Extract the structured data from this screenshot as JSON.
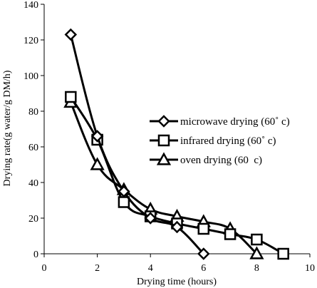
{
  "chart_data": {
    "type": "line",
    "title": "",
    "xlabel": "Drying time (hours)",
    "ylabel": "Drying rate(g water/g DM/h)",
    "xlim": [
      0,
      10
    ],
    "ylim": [
      0,
      140
    ],
    "xticks": [
      0,
      2,
      4,
      6,
      8,
      10
    ],
    "yticks": [
      0,
      20,
      40,
      60,
      80,
      100,
      120,
      140
    ],
    "grid": false,
    "legend_position": "right",
    "series": [
      {
        "name": "microwave drying (60˚ c)",
        "marker": "diamond",
        "x": [
          1,
          2,
          3,
          4,
          5,
          6
        ],
        "y": [
          123,
          66,
          35,
          20,
          15,
          0
        ]
      },
      {
        "name": "infrared drying (60˚ c)",
        "marker": "square",
        "x": [
          1,
          2,
          3,
          4,
          5,
          6,
          7,
          8,
          9
        ],
        "y": [
          88,
          64,
          29,
          21,
          17,
          14,
          11,
          8,
          0
        ]
      },
      {
        "name": "oven drying (60  c)",
        "marker": "triangle",
        "x": [
          1,
          2,
          3,
          4,
          5,
          6,
          7,
          8
        ],
        "y": [
          85,
          50,
          36,
          25,
          21,
          18,
          14,
          0
        ]
      }
    ]
  }
}
